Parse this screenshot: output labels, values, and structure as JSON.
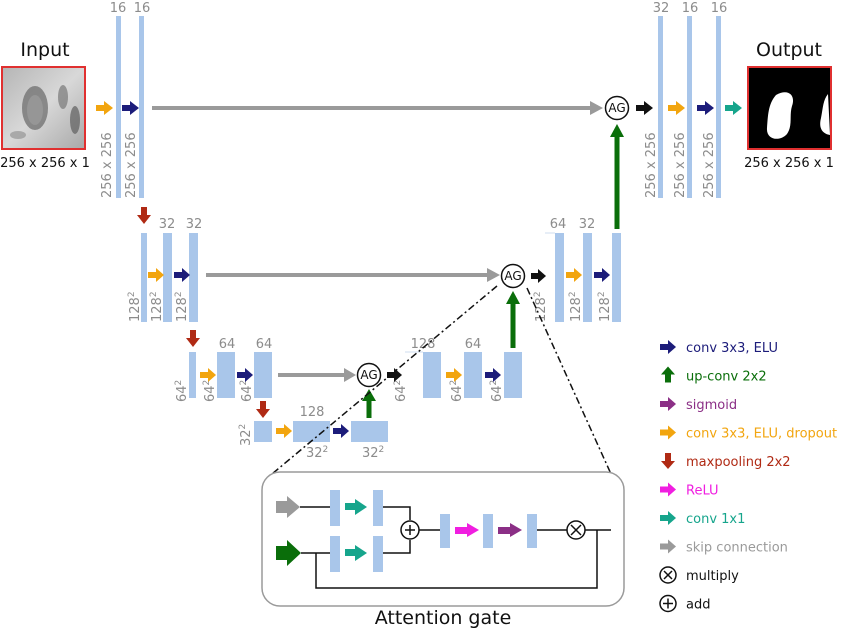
{
  "io": {
    "input_label": "Input",
    "output_label": "Output",
    "input_dims": "256 x 256 x 1",
    "output_dims": "256 x 256 x 1"
  },
  "channels": {
    "c16": "16",
    "c32": "32",
    "c64": "64",
    "c128": "128"
  },
  "sizes": {
    "s256": "256 x 256",
    "s128": "128",
    "s64": "64",
    "s32": "32",
    "sq": "2"
  },
  "gate": {
    "node_label": "AG",
    "title": "Attention gate",
    "multiply_symbol": "×",
    "add_symbol": "+"
  },
  "legend": [
    {
      "label": "conv 3x3, ELU",
      "color": "#1c1c7a",
      "kind": "arrow-right"
    },
    {
      "label": "up-conv 2x2",
      "color": "#0a6e0a",
      "kind": "arrow-up"
    },
    {
      "label": "sigmoid",
      "color": "#8b2f86",
      "kind": "arrow-right"
    },
    {
      "label": "conv 3x3, ELU, dropout",
      "color": "#f2a50f",
      "kind": "arrow-right"
    },
    {
      "label": "maxpooling 2x2",
      "color": "#b02a14",
      "kind": "arrow-down"
    },
    {
      "label": "ReLU",
      "color": "#f01ee0",
      "kind": "arrow-right"
    },
    {
      "label": "conv 1x1",
      "color": "#16a58c",
      "kind": "arrow-right"
    },
    {
      "label": "skip connection",
      "color": "#9a9a9a",
      "kind": "arrow-right"
    },
    {
      "label": "multiply",
      "color": "#111111",
      "kind": "circle-x"
    },
    {
      "label": "add",
      "color": "#111111",
      "kind": "circle-plus"
    }
  ],
  "colors": {
    "block": "#a9c6ea",
    "conv": "#1c1c7a",
    "upconv": "#0a6e0a",
    "sigmoid": "#8b2f86",
    "dropout": "#f2a50f",
    "pool": "#b02a14",
    "relu": "#f01ee0",
    "conv1x1": "#16a58c",
    "skip": "#9a9a9a"
  }
}
